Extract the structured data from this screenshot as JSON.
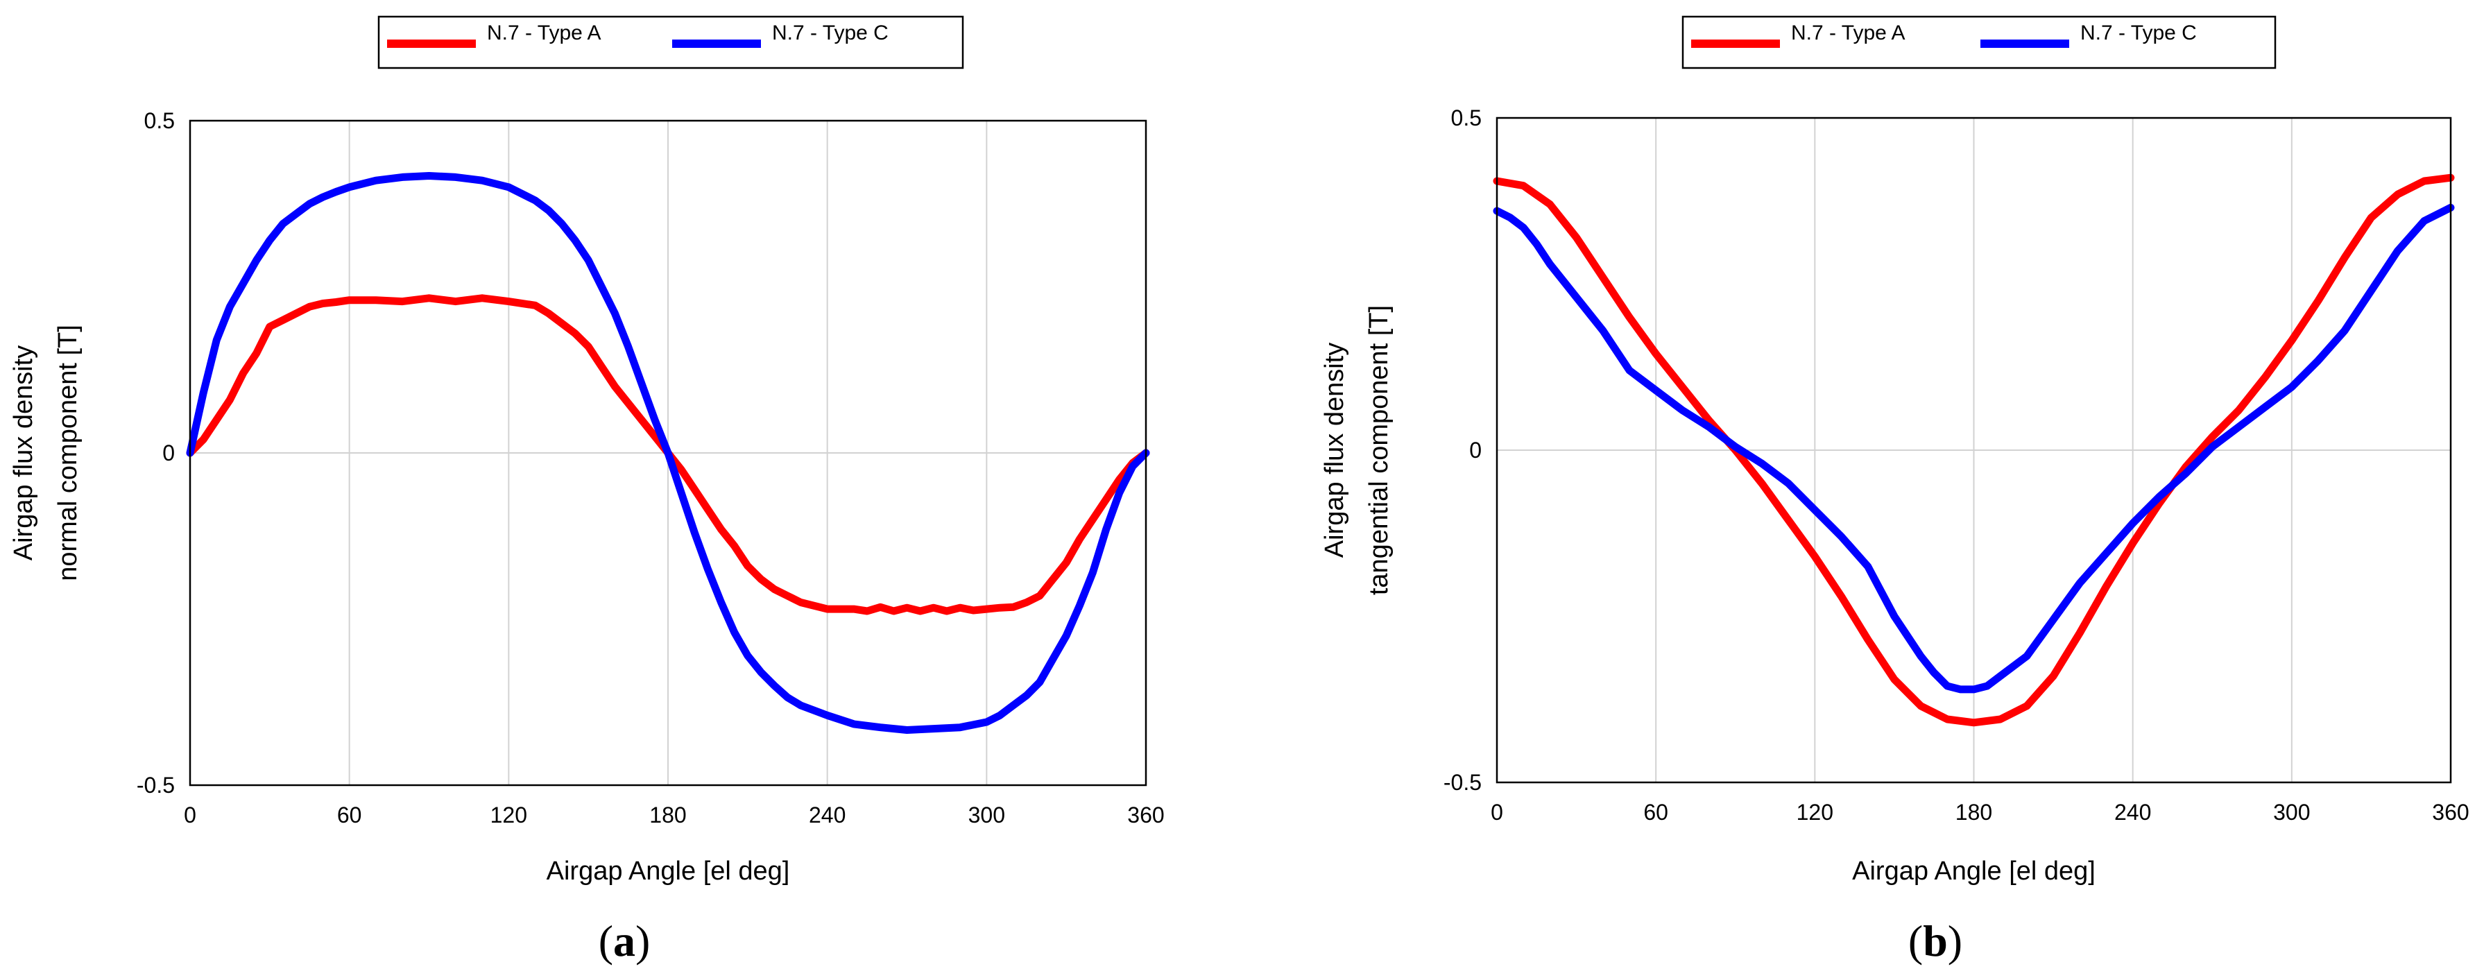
{
  "colors": {
    "type_a": "#ff0000",
    "type_c": "#0000ff",
    "grid": "#d2d2d2",
    "frame": "#000000"
  },
  "chart_data": [
    {
      "id": "a",
      "type": "line",
      "caption": {
        "open": "(",
        "letter": "a",
        "close": ")"
      },
      "xlabel": "Airgap Angle [el deg]",
      "ylabel_lines": [
        "Airgap flux density",
        "normal component [T]"
      ],
      "xlim": [
        0,
        360
      ],
      "ylim": [
        -0.5,
        0.5
      ],
      "xticks": [
        0,
        60,
        120,
        180,
        240,
        300,
        360
      ],
      "xtick_labels": [
        "0",
        "60",
        "120",
        "180",
        "240",
        "300",
        "360"
      ],
      "yticks": [
        -0.5,
        0,
        0.5
      ],
      "ytick_labels": [
        "-0.5",
        "0",
        "0.5"
      ],
      "grid": true,
      "legend": {
        "placement": "top-center",
        "entries": [
          "N.7 - Type A",
          "N.7 - Type C"
        ]
      },
      "series": [
        {
          "name": "N.7 - Type A",
          "color": "#ff0000",
          "x": [
            0,
            5,
            10,
            15,
            20,
            25,
            30,
            35,
            40,
            45,
            50,
            55,
            60,
            70,
            80,
            90,
            100,
            110,
            120,
            130,
            135,
            140,
            145,
            150,
            155,
            160,
            165,
            170,
            175,
            180,
            185,
            190,
            195,
            200,
            205,
            210,
            215,
            220,
            225,
            230,
            240,
            250,
            255,
            260,
            265,
            270,
            275,
            280,
            285,
            290,
            295,
            300,
            305,
            310,
            315,
            320,
            325,
            330,
            335,
            340,
            345,
            350,
            355,
            360
          ],
          "y": [
            0,
            0.02,
            0.05,
            0.08,
            0.12,
            0.15,
            0.19,
            0.2,
            0.21,
            0.22,
            0.225,
            0.227,
            0.23,
            0.23,
            0.228,
            0.233,
            0.228,
            0.233,
            0.228,
            0.222,
            0.21,
            0.195,
            0.18,
            0.16,
            0.13,
            0.1,
            0.075,
            0.05,
            0.025,
            0,
            -0.025,
            -0.055,
            -0.085,
            -0.115,
            -0.14,
            -0.17,
            -0.19,
            -0.205,
            -0.215,
            -0.225,
            -0.235,
            -0.235,
            -0.238,
            -0.232,
            -0.238,
            -0.233,
            -0.238,
            -0.233,
            -0.238,
            -0.233,
            -0.237,
            -0.235,
            -0.233,
            -0.232,
            -0.225,
            -0.215,
            -0.19,
            -0.165,
            -0.13,
            -0.1,
            -0.07,
            -0.04,
            -0.015,
            0
          ]
        },
        {
          "name": "N.7 - Type C",
          "color": "#0000ff",
          "x": [
            0,
            5,
            10,
            15,
            20,
            25,
            30,
            35,
            40,
            45,
            50,
            55,
            60,
            70,
            80,
            90,
            100,
            110,
            120,
            130,
            135,
            140,
            145,
            150,
            155,
            160,
            165,
            170,
            175,
            180,
            185,
            190,
            195,
            200,
            205,
            210,
            215,
            220,
            225,
            230,
            240,
            250,
            260,
            270,
            280,
            290,
            300,
            305,
            310,
            315,
            320,
            325,
            330,
            335,
            340,
            345,
            350,
            355,
            360
          ],
          "y": [
            0,
            0.09,
            0.17,
            0.22,
            0.255,
            0.29,
            0.32,
            0.345,
            0.36,
            0.375,
            0.385,
            0.393,
            0.4,
            0.41,
            0.415,
            0.417,
            0.415,
            0.41,
            0.4,
            0.38,
            0.365,
            0.345,
            0.32,
            0.29,
            0.25,
            0.21,
            0.16,
            0.105,
            0.05,
            0,
            -0.06,
            -0.12,
            -0.175,
            -0.225,
            -0.27,
            -0.305,
            -0.33,
            -0.35,
            -0.368,
            -0.38,
            -0.395,
            -0.408,
            -0.413,
            -0.417,
            -0.415,
            -0.413,
            -0.405,
            -0.395,
            -0.38,
            -0.365,
            -0.345,
            -0.31,
            -0.275,
            -0.23,
            -0.18,
            -0.115,
            -0.06,
            -0.02,
            0
          ]
        }
      ]
    },
    {
      "id": "b",
      "type": "line",
      "caption": {
        "open": "(",
        "letter": "b",
        "close": ")"
      },
      "xlabel": "Airgap Angle [el deg]",
      "ylabel_lines": [
        "Airgap flux density",
        "tangential component [T]"
      ],
      "xlim": [
        0,
        360
      ],
      "ylim": [
        -0.5,
        0.5
      ],
      "xticks": [
        0,
        60,
        120,
        180,
        240,
        300,
        360
      ],
      "xtick_labels": [
        "0",
        "60",
        "120",
        "180",
        "240",
        "300",
        "360"
      ],
      "yticks": [
        -0.5,
        0,
        0.5
      ],
      "ytick_labels": [
        "-0.5",
        "0",
        "0.5"
      ],
      "grid": true,
      "legend": {
        "placement": "top-center",
        "entries": [
          "N.7 - Type A",
          "N.7 - Type C"
        ]
      },
      "series": [
        {
          "name": "N.7 - Type A",
          "color": "#ff0000",
          "x": [
            0,
            10,
            20,
            30,
            40,
            50,
            60,
            70,
            80,
            90,
            100,
            110,
            120,
            130,
            140,
            150,
            160,
            170,
            180,
            190,
            200,
            210,
            220,
            230,
            240,
            250,
            260,
            270,
            280,
            290,
            300,
            310,
            320,
            330,
            340,
            350,
            360
          ],
          "y": [
            0.405,
            0.398,
            0.37,
            0.32,
            0.26,
            0.2,
            0.145,
            0.095,
            0.045,
            0,
            -0.05,
            -0.105,
            -0.16,
            -0.22,
            -0.285,
            -0.345,
            -0.385,
            -0.405,
            -0.41,
            -0.405,
            -0.385,
            -0.34,
            -0.275,
            -0.205,
            -0.14,
            -0.08,
            -0.025,
            0.02,
            0.06,
            0.11,
            0.165,
            0.225,
            0.29,
            0.35,
            0.385,
            0.405,
            0.41
          ]
        },
        {
          "name": "N.7 - Type C",
          "color": "#0000ff",
          "x": [
            0,
            5,
            10,
            15,
            20,
            25,
            30,
            40,
            50,
            60,
            70,
            80,
            90,
            100,
            110,
            120,
            130,
            140,
            150,
            155,
            160,
            165,
            170,
            175,
            180,
            185,
            190,
            200,
            210,
            220,
            230,
            240,
            250,
            260,
            270,
            280,
            290,
            300,
            310,
            320,
            330,
            340,
            350,
            360
          ],
          "y": [
            0.36,
            0.35,
            0.335,
            0.31,
            0.28,
            0.255,
            0.23,
            0.18,
            0.12,
            0.09,
            0.06,
            0.035,
            0.005,
            -0.02,
            -0.05,
            -0.09,
            -0.13,
            -0.175,
            -0.25,
            -0.28,
            -0.31,
            -0.335,
            -0.355,
            -0.36,
            -0.36,
            -0.355,
            -0.34,
            -0.31,
            -0.255,
            -0.2,
            -0.155,
            -0.11,
            -0.07,
            -0.035,
            0.005,
            0.035,
            0.065,
            0.095,
            0.135,
            0.18,
            0.24,
            0.3,
            0.345,
            0.365
          ]
        }
      ]
    }
  ]
}
